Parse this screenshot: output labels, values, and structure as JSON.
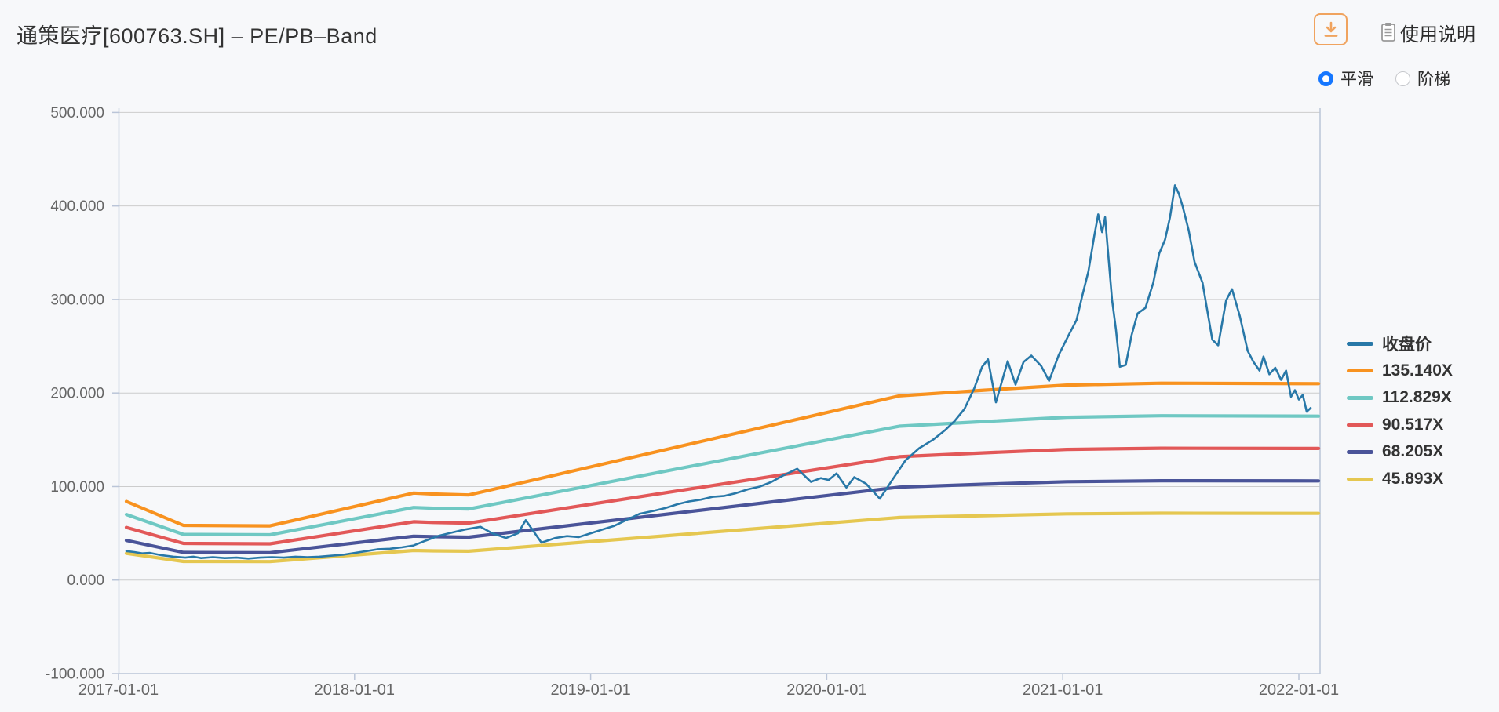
{
  "page": {
    "background": "#f7f8fa"
  },
  "header": {
    "title": "通策医疗[600763.SH] – PE/PB–Band",
    "download_button": {
      "icon": "download-icon",
      "color": "#f0a35e"
    },
    "help": {
      "icon": "document-icon",
      "label": "使用说明"
    },
    "line_mode": {
      "radio_color": "#1677ff",
      "options": [
        {
          "label": "平滑",
          "selected": true
        },
        {
          "label": "阶梯",
          "selected": false
        }
      ]
    }
  },
  "chart_data": {
    "type": "line",
    "title": "PE/PB-Band",
    "grid": true,
    "legend_position": "right",
    "colors": {
      "grid": "#cccccc",
      "axis": "#bac5d8",
      "tick_text": "#666666"
    },
    "x_axis": {
      "unit": "months since 2017-01",
      "range": [
        0,
        61
      ],
      "ticks": [
        {
          "m": 0,
          "label": "2017-01-01"
        },
        {
          "m": 12,
          "label": "2018-01-01"
        },
        {
          "m": 24,
          "label": "2019-01-01"
        },
        {
          "m": 36,
          "label": "2020-01-01"
        },
        {
          "m": 48,
          "label": "2021-01-01"
        },
        {
          "m": 60,
          "label": "2022-01-01"
        }
      ]
    },
    "y_axis": {
      "range": [
        -100,
        500
      ],
      "ticks": [
        {
          "v": 500,
          "label": "500.000"
        },
        {
          "v": 400,
          "label": "400.000"
        },
        {
          "v": 300,
          "label": "300.000"
        },
        {
          "v": 200,
          "label": "200.000"
        },
        {
          "v": 100,
          "label": "100.000"
        },
        {
          "v": 0,
          "label": "0.000"
        },
        {
          "v": -100,
          "label": "-100.000"
        }
      ],
      "gridline_values": [
        500,
        400,
        300,
        200,
        100,
        0
      ]
    },
    "series": [
      {
        "name": "收盘价",
        "color": "#2878a8",
        "width": 2.6,
        "z": 10,
        "points": [
          [
            0.4,
            31
          ],
          [
            0.8,
            30
          ],
          [
            1.2,
            28.5
          ],
          [
            1.6,
            29
          ],
          [
            2.2,
            26.5
          ],
          [
            2.8,
            25
          ],
          [
            3.4,
            24
          ],
          [
            3.8,
            25
          ],
          [
            4.2,
            23.5
          ],
          [
            4.8,
            24.5
          ],
          [
            5.4,
            23.5
          ],
          [
            6,
            24
          ],
          [
            6.6,
            23
          ],
          [
            7.2,
            24
          ],
          [
            7.8,
            24.5
          ],
          [
            8.4,
            24
          ],
          [
            9,
            25
          ],
          [
            9.6,
            24.5
          ],
          [
            10.2,
            25
          ],
          [
            10.8,
            26
          ],
          [
            11.4,
            27
          ],
          [
            12,
            29
          ],
          [
            12.6,
            31
          ],
          [
            13.2,
            33
          ],
          [
            13.8,
            33.5
          ],
          [
            14.4,
            35
          ],
          [
            15,
            37
          ],
          [
            15.6,
            42
          ],
          [
            16.3,
            47.5
          ],
          [
            17,
            51
          ],
          [
            17.6,
            54
          ],
          [
            18.4,
            57
          ],
          [
            19,
            50
          ],
          [
            19.7,
            45
          ],
          [
            20.3,
            50
          ],
          [
            20.7,
            64
          ],
          [
            21.5,
            40
          ],
          [
            22.2,
            45
          ],
          [
            22.8,
            47
          ],
          [
            23.4,
            46
          ],
          [
            24,
            50
          ],
          [
            24.6,
            54
          ],
          [
            25.2,
            58
          ],
          [
            25.8,
            64
          ],
          [
            26.5,
            71
          ],
          [
            27.2,
            74
          ],
          [
            27.8,
            77
          ],
          [
            28.4,
            81
          ],
          [
            29,
            84
          ],
          [
            29.6,
            86
          ],
          [
            30.2,
            89
          ],
          [
            30.8,
            90
          ],
          [
            31.4,
            93
          ],
          [
            32,
            97
          ],
          [
            32.6,
            100
          ],
          [
            33.2,
            105
          ],
          [
            33.8,
            112
          ],
          [
            34.5,
            119
          ],
          [
            35.2,
            105
          ],
          [
            35.7,
            109
          ],
          [
            36.1,
            107
          ],
          [
            36.5,
            114
          ],
          [
            37,
            99
          ],
          [
            37.4,
            110
          ],
          [
            38,
            103
          ],
          [
            38.7,
            87
          ],
          [
            39.3,
            106
          ],
          [
            40,
            128
          ],
          [
            40.7,
            141
          ],
          [
            41.4,
            150
          ],
          [
            42,
            160
          ],
          [
            42.5,
            170
          ],
          [
            43,
            183
          ],
          [
            43.5,
            205
          ],
          [
            43.9,
            228
          ],
          [
            44.2,
            236
          ],
          [
            44.6,
            190
          ],
          [
            45.2,
            234
          ],
          [
            45.6,
            209
          ],
          [
            46,
            233
          ],
          [
            46.4,
            240
          ],
          [
            46.9,
            229
          ],
          [
            47.3,
            213
          ],
          [
            47.8,
            241
          ],
          [
            48.3,
            262
          ],
          [
            48.7,
            278
          ],
          [
            49,
            305
          ],
          [
            49.3,
            330
          ],
          [
            49.6,
            368
          ],
          [
            49.8,
            391
          ],
          [
            50,
            372
          ],
          [
            50.15,
            388
          ],
          [
            50.5,
            300
          ],
          [
            50.7,
            268
          ],
          [
            50.9,
            228
          ],
          [
            51.2,
            230
          ],
          [
            51.5,
            262
          ],
          [
            51.8,
            285
          ],
          [
            52.2,
            291
          ],
          [
            52.6,
            318
          ],
          [
            52.9,
            349
          ],
          [
            53.2,
            364
          ],
          [
            53.45,
            388
          ],
          [
            53.7,
            422
          ],
          [
            53.9,
            413
          ],
          [
            54.1,
            399
          ],
          [
            54.4,
            374
          ],
          [
            54.7,
            340
          ],
          [
            55.1,
            318
          ],
          [
            55.6,
            257
          ],
          [
            55.9,
            251
          ],
          [
            56.3,
            299
          ],
          [
            56.6,
            311
          ],
          [
            57,
            282
          ],
          [
            57.4,
            245
          ],
          [
            57.7,
            233
          ],
          [
            58,
            224
          ],
          [
            58.2,
            239
          ],
          [
            58.5,
            220
          ],
          [
            58.8,
            227
          ],
          [
            59.1,
            214
          ],
          [
            59.35,
            224
          ],
          [
            59.6,
            196
          ],
          [
            59.8,
            203
          ],
          [
            60,
            193
          ],
          [
            60.2,
            198
          ],
          [
            60.4,
            180
          ],
          [
            60.6,
            184
          ]
        ]
      },
      {
        "name": "135.140X",
        "color": "#f8921f",
        "width": 4.2,
        "z": 5,
        "points": [
          [
            0.4,
            84
          ],
          [
            3.3,
            58.5
          ],
          [
            7.7,
            58
          ],
          [
            15,
            93
          ],
          [
            16,
            92
          ],
          [
            17.8,
            91
          ],
          [
            39.7,
            197
          ],
          [
            44,
            203
          ],
          [
            48.2,
            208.5
          ],
          [
            53,
            210.5
          ],
          [
            61,
            210
          ]
        ]
      },
      {
        "name": "112.829X",
        "color": "#6fc8c3",
        "width": 4.2,
        "z": 4,
        "points": [
          [
            0.4,
            70.1
          ],
          [
            3.3,
            48.8
          ],
          [
            7.7,
            48.4
          ],
          [
            15,
            77.6
          ],
          [
            16,
            76.8
          ],
          [
            17.8,
            76
          ],
          [
            39.7,
            164.5
          ],
          [
            44,
            169.5
          ],
          [
            48.2,
            174.1
          ],
          [
            53,
            175.7
          ],
          [
            61,
            175.3
          ]
        ]
      },
      {
        "name": "90.517X",
        "color": "#e25858",
        "width": 4.2,
        "z": 3,
        "points": [
          [
            0.4,
            56.3
          ],
          [
            3.3,
            39.2
          ],
          [
            7.7,
            38.8
          ],
          [
            15,
            62.3
          ],
          [
            16,
            61.6
          ],
          [
            17.8,
            60.9
          ],
          [
            39.7,
            131.9
          ],
          [
            44,
            136
          ],
          [
            48.2,
            139.7
          ],
          [
            53,
            141
          ],
          [
            61,
            140.7
          ]
        ]
      },
      {
        "name": "68.205X",
        "color": "#4a5499",
        "width": 4.2,
        "z": 2,
        "points": [
          [
            0.4,
            42.4
          ],
          [
            3.3,
            29.5
          ],
          [
            7.7,
            29.3
          ],
          [
            15,
            46.9
          ],
          [
            16,
            46.4
          ],
          [
            17.8,
            45.9
          ],
          [
            39.7,
            99.4
          ],
          [
            44,
            102.5
          ],
          [
            48.2,
            105.2
          ],
          [
            53,
            106.2
          ],
          [
            61,
            106
          ]
        ]
      },
      {
        "name": "45.893X",
        "color": "#e5c750",
        "width": 4.2,
        "z": 1,
        "points": [
          [
            0.4,
            28.5
          ],
          [
            3.3,
            19.9
          ],
          [
            7.7,
            19.7
          ],
          [
            15,
            31.6
          ],
          [
            16,
            31.2
          ],
          [
            17.8,
            30.9
          ],
          [
            39.7,
            66.9
          ],
          [
            44,
            68.9
          ],
          [
            48.2,
            70.8
          ],
          [
            53,
            71.5
          ],
          [
            61,
            71.3
          ]
        ]
      }
    ]
  }
}
